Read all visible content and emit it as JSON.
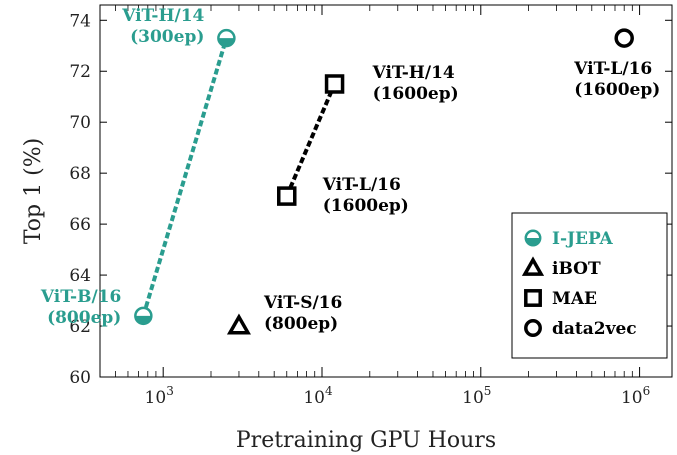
{
  "chart_data": {
    "type": "scatter",
    "xlabel": "Pretraining GPU Hours",
    "ylabel": "Top 1 (%)",
    "xscale": "log",
    "xlim": [
      400,
      1600000
    ],
    "ylim": [
      60,
      74.6
    ],
    "x_ticks": [
      {
        "value": 1000,
        "base": "10",
        "exp": "3"
      },
      {
        "value": 10000,
        "base": "10",
        "exp": "4"
      },
      {
        "value": 100000,
        "base": "10",
        "exp": "5"
      },
      {
        "value": 1000000,
        "base": "10",
        "exp": "6"
      }
    ],
    "y_ticks": [
      60,
      62,
      64,
      66,
      68,
      70,
      72,
      74
    ],
    "grid": false,
    "legend_position": "bottom-right",
    "series": [
      {
        "name": "I-JEPA",
        "marker": "half-circle",
        "color": "#2a9d8f",
        "connected": true,
        "points": [
          {
            "x": 750,
            "y": 62.4,
            "model": "ViT-B/16",
            "epochs": "(800ep)"
          },
          {
            "x": 2500,
            "y": 73.3,
            "model": "ViT-H/14",
            "epochs": "(300ep)"
          }
        ]
      },
      {
        "name": "iBOT",
        "marker": "triangle",
        "color": "#000000",
        "connected": false,
        "points": [
          {
            "x": 3000,
            "y": 62.0,
            "model": "ViT-S/16",
            "epochs": "(800ep)"
          }
        ]
      },
      {
        "name": "MAE",
        "marker": "square",
        "color": "#000000",
        "connected": true,
        "points": [
          {
            "x": 6000,
            "y": 67.1,
            "model": "ViT-L/16",
            "epochs": "(1600ep)"
          },
          {
            "x": 12000,
            "y": 71.5,
            "model": "ViT-H/14",
            "epochs": "(1600ep)"
          }
        ]
      },
      {
        "name": "data2vec",
        "marker": "circle",
        "color": "#000000",
        "connected": false,
        "points": [
          {
            "x": 800000,
            "y": 73.3,
            "model": "ViT-L/16",
            "epochs": "(1600ep)"
          }
        ]
      }
    ]
  }
}
